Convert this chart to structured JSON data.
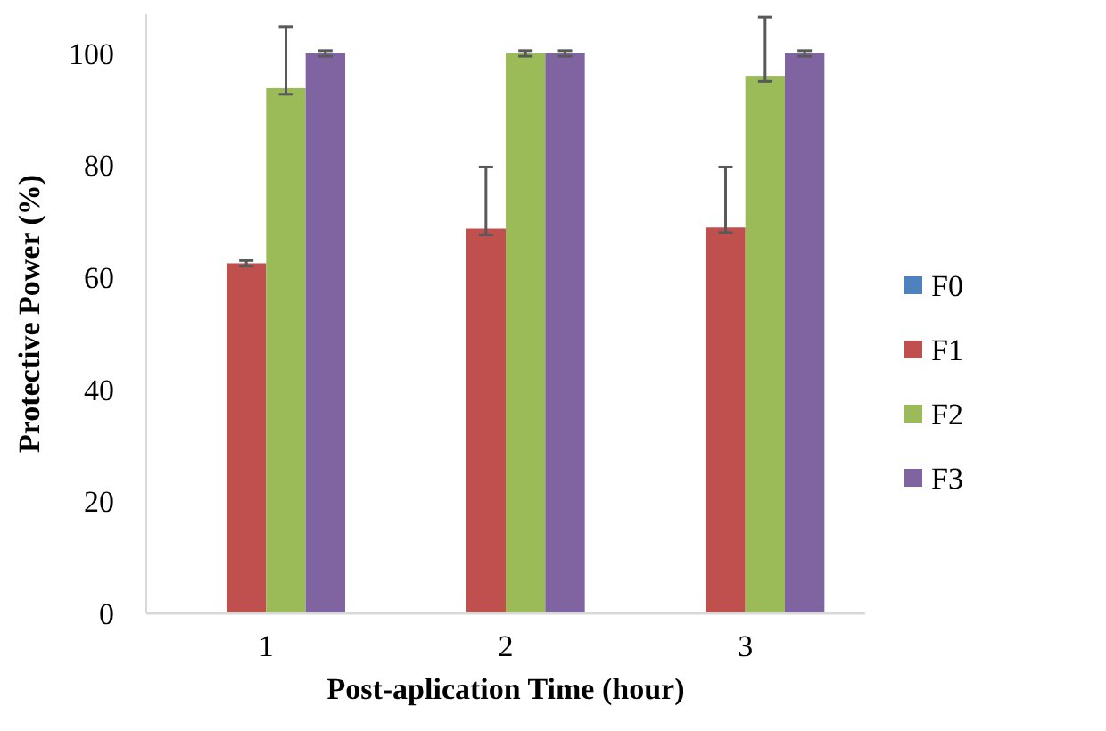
{
  "chart_data": {
    "type": "bar",
    "xlabel": "Post-aplication Time (hour)",
    "ylabel": "Protective Power (%)",
    "categories": [
      "1",
      "2",
      "3"
    ],
    "series": [
      {
        "name": "F0",
        "color": "#4f81bd",
        "values": [
          0,
          0,
          0
        ]
      },
      {
        "name": "F1",
        "color": "#c0504d",
        "values": [
          62.5,
          68.7,
          68.9
        ],
        "errors": [
          [
            62,
            63
          ],
          [
            67.6,
            79.7
          ],
          [
            68,
            79.7
          ]
        ]
      },
      {
        "name": "F2",
        "color": "#9bbb59",
        "values": [
          93.8,
          100,
          96
        ],
        "errors": [
          [
            92.7,
            104.8
          ],
          [
            99.5,
            100.5
          ],
          [
            95,
            106.5
          ]
        ]
      },
      {
        "name": "F3",
        "color": "#8064a2",
        "values": [
          100,
          100,
          100
        ],
        "errors": [
          [
            99.5,
            100.5
          ],
          [
            99.5,
            100.5
          ],
          [
            99.5,
            100.5
          ]
        ]
      }
    ],
    "ylim": [
      0,
      107
    ],
    "yticks": [
      0,
      20,
      40,
      60,
      80,
      100
    ],
    "grid": false,
    "legend": "right"
  }
}
